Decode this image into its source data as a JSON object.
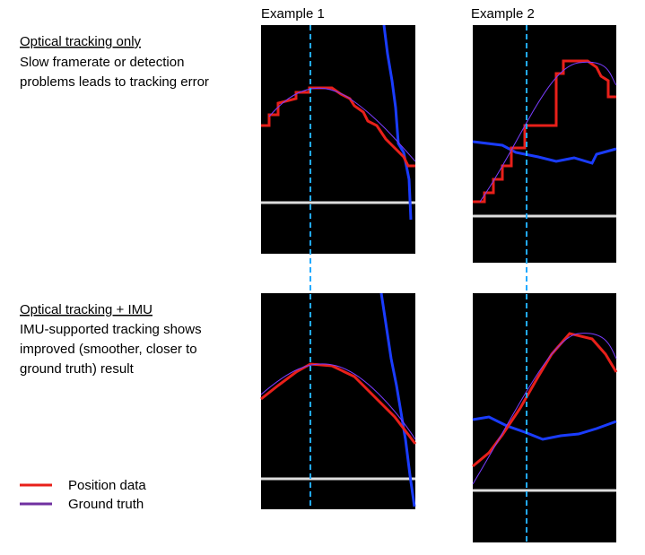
{
  "columns": [
    "Example 1",
    "Example 2"
  ],
  "sections": [
    {
      "title": "Optical tracking only",
      "lines": [
        "Slow framerate or detection",
        "problems leads to tracking error"
      ]
    },
    {
      "title": "Optical tracking + IMU",
      "lines": [
        "IMU-supported tracking shows",
        "improved (smoother, closer to",
        "ground truth) result"
      ]
    }
  ],
  "legend": [
    "Position data",
    "Ground truth"
  ]
}
